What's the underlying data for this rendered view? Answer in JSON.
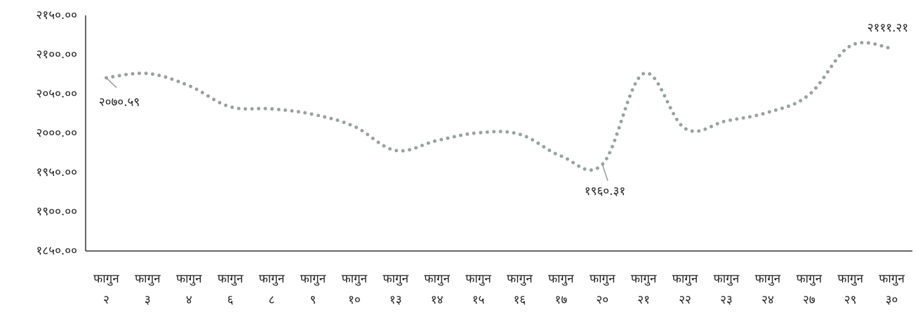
{
  "chart_data": {
    "type": "line",
    "categories": [
      [
        "फागुन",
        "२"
      ],
      [
        "फागुन",
        "३"
      ],
      [
        "फागुन",
        "४"
      ],
      [
        "फागुन",
        "६"
      ],
      [
        "फागुन",
        "८"
      ],
      [
        "फागुन",
        "९"
      ],
      [
        "फागुन",
        "१०"
      ],
      [
        "फागुन",
        "१३"
      ],
      [
        "फागुन",
        "१४"
      ],
      [
        "फागुन",
        "१५"
      ],
      [
        "फागुन",
        "१६"
      ],
      [
        "फागुन",
        "१७"
      ],
      [
        "फागुन",
        "२०"
      ],
      [
        "फागुन",
        "२१"
      ],
      [
        "फागुन",
        "२२"
      ],
      [
        "फागुन",
        "२३"
      ],
      [
        "फागुन",
        "२४"
      ],
      [
        "फागुन",
        "२७"
      ],
      [
        "फागुन",
        "२९"
      ],
      [
        "फागुन",
        "३०"
      ]
    ],
    "series": [
      {
        "color": "#97a39d",
        "values": [
          2070.59,
          2076,
          2060.5,
          2033.6,
          2031,
          2024,
          2008.6,
          1978,
          1990.6,
          2000.5,
          1998.7,
          1971,
          1960.31,
          2076,
          2006,
          2015.7,
          2026.5,
          2049,
          2111.21,
          2108
        ],
        "value_labels": [
          "२०७०.५९",
          null,
          null,
          null,
          null,
          null,
          null,
          null,
          null,
          null,
          null,
          null,
          "१९६०.३१",
          null,
          null,
          null,
          null,
          null,
          "२१११.२१",
          null
        ]
      }
    ],
    "ylim": [
      1850,
      2150
    ],
    "yticks": [
      {
        "value": 1850,
        "label": "१८५०.००"
      },
      {
        "value": 1900,
        "label": "१९००.००"
      },
      {
        "value": 1950,
        "label": "१९५०.००"
      },
      {
        "value": 2000,
        "label": "२०००.००"
      },
      {
        "value": 2050,
        "label": "२०५०.००"
      },
      {
        "value": 2100,
        "label": "२१००.००"
      },
      {
        "value": 2150,
        "label": "२१५०.००"
      }
    ]
  }
}
